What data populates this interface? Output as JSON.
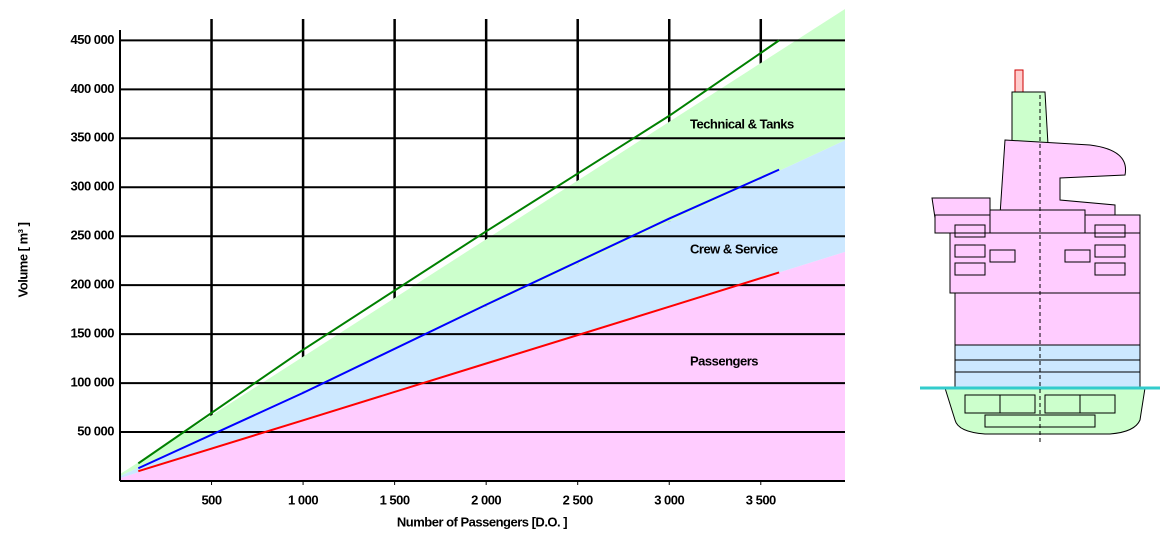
{
  "chart_data": {
    "type": "area",
    "stacked": true,
    "xlabel": "Number of Passengers [D.O. ]",
    "ylabel": "Volume [ m³ ]",
    "xlim": [
      0,
      3960
    ],
    "ylim": [
      0,
      480000
    ],
    "xticks": [
      500,
      {
        "value": 1000,
        "label": "1 000"
      },
      {
        "value": 1500,
        "label": "1 500"
      },
      {
        "value": 2000,
        "label": "2 000"
      },
      {
        "value": 2500,
        "label": "2 500"
      },
      {
        "value": 3000,
        "label": "3 000"
      },
      {
        "value": 3500,
        "label": "3 500"
      }
    ],
    "yticks": [
      {
        "value": 50000,
        "label": "50 000"
      },
      {
        "value": 100000,
        "label": "100 000"
      },
      {
        "value": 150000,
        "label": "150 000"
      },
      {
        "value": 200000,
        "label": "200 000"
      },
      {
        "value": 250000,
        "label": "250 000"
      },
      {
        "value": 300000,
        "label": "300 000"
      },
      {
        "value": 350000,
        "label": "350 000"
      },
      {
        "value": 400000,
        "label": "400 000"
      },
      {
        "value": 450000,
        "label": "450 000"
      }
    ],
    "grid": true,
    "x": [
      0,
      3960
    ],
    "series": [
      {
        "name": "Passengers",
        "color": "#ffccff",
        "values": [
          3000,
          234000
        ]
      },
      {
        "name": "Crew & Service",
        "color": "#cce8ff",
        "values": [
          2000,
          114000
        ]
      },
      {
        "name": "Technical & Tanks",
        "color": "#ccffcc",
        "values": [
          2000,
          134000
        ]
      }
    ],
    "lines": {
      "x": [
        100,
        1000,
        2000,
        3000,
        3600
      ],
      "series": [
        {
          "color": "#ff0000",
          "values": [
            10000,
            62000,
            120000,
            178000,
            213000
          ]
        },
        {
          "color": "#0000ff",
          "values": [
            13000,
            90000,
            180000,
            268000,
            318000
          ]
        },
        {
          "color": "#008000",
          "values": [
            18000,
            134000,
            255000,
            373000,
            450000
          ]
        }
      ]
    }
  }
}
